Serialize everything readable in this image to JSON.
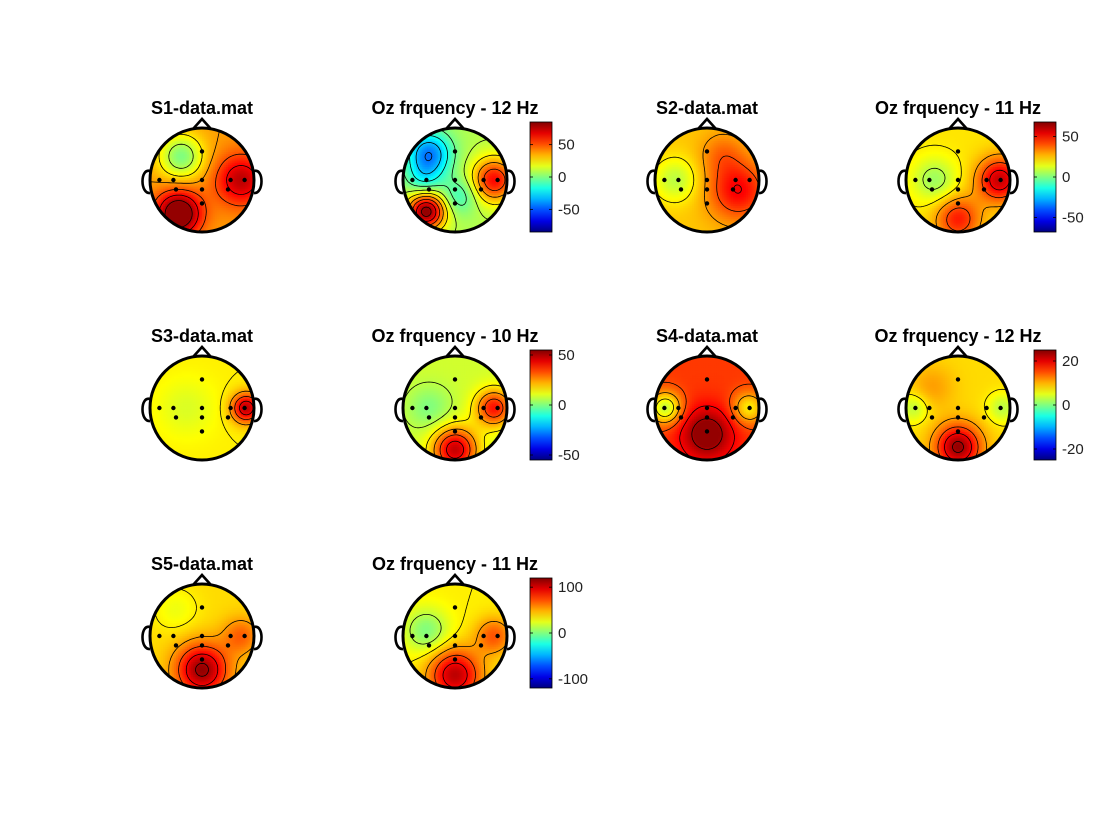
{
  "figure": {
    "background": "#ffffff",
    "colormap": "jet",
    "contour_color": "#000000",
    "electrode_color": "#000000"
  },
  "chart_data": [
    {
      "type": "heatmap",
      "subtype": "topographic-map",
      "title": "S1-data.mat",
      "colorbar": false,
      "peaks": [
        {
          "pos": "left-posterior",
          "value": "high"
        },
        {
          "pos": "right",
          "value": "high"
        },
        {
          "pos": "left-frontal",
          "value": "lower"
        }
      ]
    },
    {
      "type": "heatmap",
      "subtype": "topographic-map",
      "title": "Oz frquency - 12 Hz",
      "colorbar": true,
      "clim": [
        -85,
        85
      ],
      "colorbar_ticks": [
        {
          "value": 50,
          "label": "50"
        },
        {
          "value": 0,
          "label": "0"
        },
        {
          "value": -50,
          "label": "-50"
        }
      ]
    },
    {
      "type": "heatmap",
      "subtype": "topographic-map",
      "title": "S2-data.mat",
      "colorbar": false
    },
    {
      "type": "heatmap",
      "subtype": "topographic-map",
      "title": "Oz frquency - 11 Hz",
      "colorbar": true,
      "clim": [
        -68,
        68
      ],
      "colorbar_ticks": [
        {
          "value": 50,
          "label": "50"
        },
        {
          "value": 0,
          "label": "0"
        },
        {
          "value": -50,
          "label": "-50"
        }
      ]
    },
    {
      "type": "heatmap",
      "subtype": "topographic-map",
      "title": "S3-data.mat",
      "colorbar": false
    },
    {
      "type": "heatmap",
      "subtype": "topographic-map",
      "title": "Oz frquency - 10 Hz",
      "colorbar": true,
      "clim": [
        -55,
        55
      ],
      "colorbar_ticks": [
        {
          "value": 50,
          "label": "50"
        },
        {
          "value": 0,
          "label": "0"
        },
        {
          "value": -50,
          "label": "-50"
        }
      ]
    },
    {
      "type": "heatmap",
      "subtype": "topographic-map",
      "title": "S4-data.mat",
      "colorbar": false
    },
    {
      "type": "heatmap",
      "subtype": "topographic-map",
      "title": "Oz frquency - 12 Hz",
      "colorbar": true,
      "clim": [
        -25,
        25
      ],
      "colorbar_ticks": [
        {
          "value": 20,
          "label": "20"
        },
        {
          "value": 0,
          "label": "0"
        },
        {
          "value": -20,
          "label": "-20"
        }
      ]
    },
    {
      "type": "heatmap",
      "subtype": "topographic-map",
      "title": "S5-data.mat",
      "colorbar": false
    },
    {
      "type": "heatmap",
      "subtype": "topographic-map",
      "title": "Oz frquency - 11 Hz",
      "colorbar": true,
      "clim": [
        -120,
        120
      ],
      "colorbar_ticks": [
        {
          "value": 100,
          "label": "100"
        },
        {
          "value": 0,
          "label": "0"
        },
        {
          "value": -100,
          "label": "-100"
        }
      ]
    }
  ]
}
